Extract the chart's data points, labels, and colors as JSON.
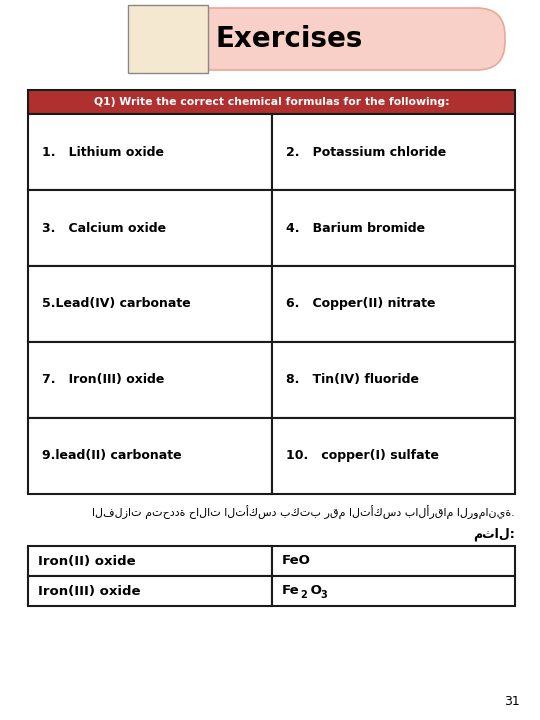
{
  "title": "Exercises",
  "page_number": "31",
  "question_header": "Q1) Write the correct chemical formulas for the following:",
  "header_bg": "#b03030",
  "header_text_color": "#ffffff",
  "table_cells": [
    [
      "1.   Lithium oxide",
      "2.   Potassium chloride"
    ],
    [
      "3.   Calcium oxide",
      "4.   Barium bromide"
    ],
    [
      "5.Lead(IV) carbonate",
      "6.   Copper(II) nitrate"
    ],
    [
      "7.   Iron(III) oxide",
      "8.   Tin(IV) fluoride"
    ],
    [
      "9.lead(II) carbonate",
      "10.   copper(I) sulfate"
    ]
  ],
  "arabic_text": "الفلزات متحددة حالات التأكسد بكتب رقم التأكسد بالأرقام الرومانية.",
  "mathal_label": "مثال:",
  "example_col1": [
    "Iron(II) oxide",
    "Iron(III) oxide"
  ],
  "example_col2_parts": [
    [
      [
        "FeO",
        0,
        0,
        0
      ]
    ],
    [
      [
        "Fe",
        0,
        0,
        0
      ],
      [
        "2",
        -3,
        1,
        -1
      ],
      [
        " O",
        0,
        0,
        0
      ],
      [
        "3",
        -3,
        1,
        -1
      ]
    ]
  ],
  "table_border": "#1a1a1a",
  "cell_bg": "#ffffff",
  "font_color": "#000000",
  "title_color": "#000000",
  "title_font_size": 20,
  "cell_font_size": 9,
  "header_font_size": 8,
  "pink_bg": "#f8d0c8",
  "pink_border": "#e8a898"
}
